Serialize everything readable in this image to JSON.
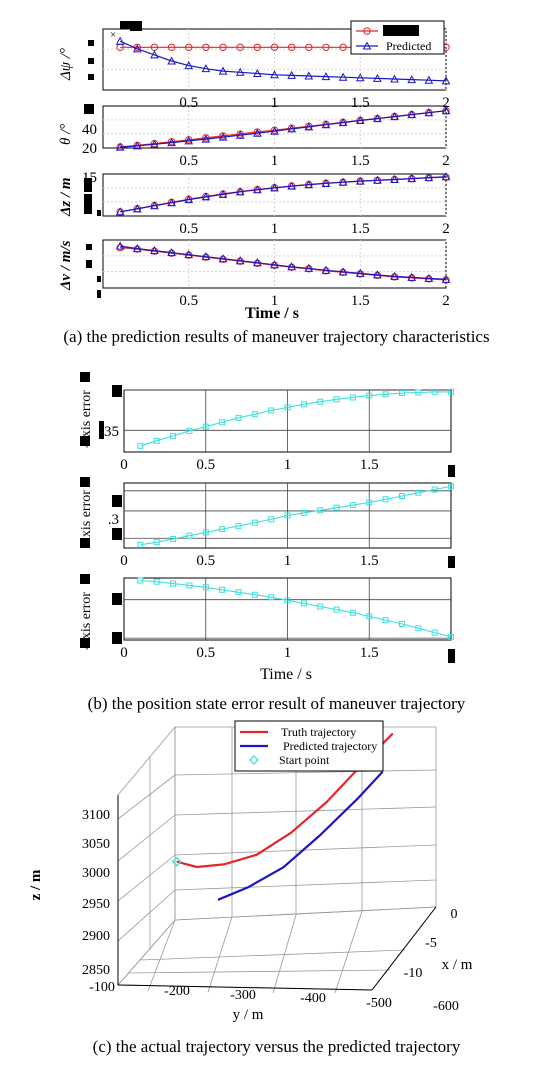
{
  "captions": {
    "a": "(a) the prediction results of maneuver trajectory characteristics",
    "b": "(b) the position state error result of maneuver trajectory",
    "c": "(c) the actual trajectory versus the predicted trajectory"
  },
  "colors": {
    "truth": "#e3262a",
    "predicted": "#1a16c8",
    "error": "#3de0dc",
    "grid": "#d2d2d2",
    "grid_b": "#444444"
  },
  "panel_a": {
    "legend": [
      "",
      "Predicted"
    ],
    "xlabel": "Time / s",
    "xticks": [
      "0.5",
      "1",
      "1.5",
      "2"
    ],
    "subplots": [
      {
        "ylabel": "Δψ /°",
        "yticks": []
      },
      {
        "ylabel": "θ /°",
        "yticks": [
          "40",
          "20"
        ]
      },
      {
        "ylabel": "Δz / m",
        "yticks": [
          "15"
        ]
      },
      {
        "ylabel": "Δv / m/s",
        "yticks": []
      }
    ]
  },
  "panel_b": {
    "xlabel": "Time / s",
    "xticks": [
      "0",
      "0.5",
      "1",
      "1.5"
    ],
    "subplots": [
      {
        "ylabel": "-axis error",
        "yticks": [
          ".35"
        ]
      },
      {
        "ylabel": "-axis error",
        "yticks": [
          ".3"
        ]
      },
      {
        "ylabel": "-axis error",
        "yticks": []
      }
    ]
  },
  "panel_c": {
    "legend": [
      "Truth trajectory",
      "Predicted trajectory",
      "Start point"
    ],
    "zlabel": "z / m",
    "ylabel": "y / m",
    "xlabel": "x / m",
    "zticks": [
      "3100",
      "3050",
      "3000",
      "2950",
      "2900",
      "2850"
    ],
    "yticks": [
      "-100",
      "-200",
      "-300",
      "-400",
      "-500",
      "-600"
    ],
    "xticks": [
      "0",
      "-5",
      "-10"
    ]
  },
  "chart_data": [
    {
      "type": "line",
      "title": "",
      "xlabel": "Time / s",
      "ylabel": "Δψ /°",
      "xlim": [
        0,
        2
      ],
      "x": [
        0.1,
        0.2,
        0.3,
        0.4,
        0.5,
        0.6,
        0.7,
        0.8,
        0.9,
        1.0,
        1.1,
        1.2,
        1.3,
        1.4,
        1.5,
        1.6,
        1.7,
        1.8,
        1.9,
        2.0
      ],
      "series": [
        {
          "name": "",
          "values": [
            0,
            0,
            0,
            0,
            0,
            0,
            0,
            0,
            0,
            0,
            0,
            0,
            0,
            0,
            0,
            0,
            0,
            0,
            0,
            0
          ]
        },
        {
          "name": "Predicted",
          "values": [
            0.2,
            -0.05,
            -0.25,
            -0.45,
            -0.6,
            -0.7,
            -0.78,
            -0.82,
            -0.86,
            -0.9,
            -0.92,
            -0.94,
            -0.96,
            -0.98,
            -1.0,
            -1.02,
            -1.04,
            -1.06,
            -1.08,
            -1.1
          ]
        }
      ]
    },
    {
      "type": "line",
      "title": "",
      "xlabel": "Time / s",
      "ylabel": "θ /°",
      "xlim": [
        0,
        2
      ],
      "ylim": [
        20,
        60
      ],
      "x": [
        0.1,
        0.2,
        0.3,
        0.4,
        0.5,
        0.6,
        0.7,
        0.8,
        0.9,
        1.0,
        1.1,
        1.2,
        1.3,
        1.4,
        1.5,
        1.6,
        1.7,
        1.8,
        1.9,
        2.0
      ],
      "series": [
        {
          "name": "",
          "values": [
            21,
            22.5,
            24.2,
            26,
            27.8,
            29.6,
            31.5,
            33.3,
            35.2,
            37,
            38.9,
            40.7,
            42.6,
            44.4,
            46.3,
            48.1,
            50,
            51.8,
            53.7,
            55.5
          ]
        },
        {
          "name": "Predicted",
          "values": [
            20.8,
            22,
            23.5,
            25.1,
            26.8,
            28.5,
            30.3,
            32.2,
            34.1,
            36,
            38.2,
            40.1,
            42.2,
            44.2,
            46.2,
            48,
            49.9,
            51.8,
            53.6,
            55.5
          ]
        }
      ]
    },
    {
      "type": "line",
      "title": "",
      "xlabel": "Time / s",
      "ylabel": "Δz / m",
      "xlim": [
        0,
        2
      ],
      "x": [
        0.1,
        0.2,
        0.3,
        0.4,
        0.5,
        0.6,
        0.7,
        0.8,
        0.9,
        1.0,
        1.1,
        1.2,
        1.3,
        1.4,
        1.5,
        1.6,
        1.7,
        1.8,
        1.9,
        2.0
      ],
      "series": [
        {
          "name": "",
          "values": [
            1,
            2.5,
            4,
            5.5,
            7,
            8.3,
            9.5,
            10.6,
            11.6,
            12.5,
            13.3,
            14,
            14.6,
            15.1,
            15.6,
            16,
            16.4,
            16.8,
            17.2,
            17.5
          ]
        },
        {
          "name": "Predicted",
          "values": [
            1,
            2.4,
            3.9,
            5.3,
            6.8,
            8.1,
            9.3,
            10.5,
            11.5,
            12.4,
            13.2,
            13.9,
            14.5,
            15.1,
            15.6,
            16,
            16.4,
            16.8,
            17.3,
            17.7
          ]
        }
      ]
    },
    {
      "type": "line",
      "title": "",
      "xlabel": "Time / s",
      "ylabel": "Δv / m/s",
      "xlim": [
        0,
        2
      ],
      "x": [
        0.1,
        0.2,
        0.3,
        0.4,
        0.5,
        0.6,
        0.7,
        0.8,
        0.9,
        1.0,
        1.1,
        1.2,
        1.3,
        1.4,
        1.5,
        1.6,
        1.7,
        1.8,
        1.9,
        2.0
      ],
      "series": [
        {
          "name": "",
          "values": [
            10,
            9.7,
            9.3,
            8.9,
            8.5,
            8.1,
            7.7,
            7.3,
            6.9,
            6.5,
            6.1,
            5.8,
            5.4,
            5.1,
            4.8,
            4.5,
            4.2,
            4.0,
            3.8,
            3.6
          ]
        },
        {
          "name": "Predicted",
          "values": [
            10.3,
            9.8,
            9.4,
            9,
            8.6,
            8.2,
            7.8,
            7.4,
            7,
            6.6,
            6.2,
            5.9,
            5.5,
            5.2,
            4.9,
            4.6,
            4.3,
            4.1,
            3.9,
            3.7
          ]
        }
      ]
    },
    {
      "type": "line",
      "title": "",
      "xlabel": "Time / s",
      "ylabel": "-axis error",
      "xlim": [
        0,
        2
      ],
      "x": [
        0.1,
        0.2,
        0.3,
        0.4,
        0.5,
        0.6,
        0.7,
        0.8,
        0.9,
        1.0,
        1.1,
        1.2,
        1.3,
        1.4,
        1.5,
        1.6,
        1.7,
        1.8,
        1.9,
        2.0
      ],
      "series": [
        {
          "name": "",
          "values": [
            0.1,
            0.18,
            0.26,
            0.34,
            0.41,
            0.48,
            0.55,
            0.61,
            0.67,
            0.72,
            0.77,
            0.81,
            0.85,
            0.88,
            0.91,
            0.93,
            0.95,
            0.96,
            0.97,
            0.97
          ]
        }
      ]
    },
    {
      "type": "line",
      "title": "",
      "xlabel": "Time / s",
      "ylabel": "-axis error",
      "xlim": [
        0,
        2
      ],
      "x": [
        0.1,
        0.2,
        0.3,
        0.4,
        0.5,
        0.6,
        0.7,
        0.8,
        0.9,
        1.0,
        1.1,
        1.2,
        1.3,
        1.4,
        1.5,
        1.6,
        1.7,
        1.8,
        1.9,
        2.0
      ],
      "series": [
        {
          "name": "",
          "values": [
            0.05,
            0.09,
            0.14,
            0.19,
            0.24,
            0.29,
            0.34,
            0.39,
            0.44,
            0.5,
            0.54,
            0.58,
            0.62,
            0.66,
            0.7,
            0.75,
            0.8,
            0.85,
            0.9,
            0.95
          ]
        }
      ]
    },
    {
      "type": "line",
      "title": "",
      "xlabel": "Time / s",
      "ylabel": "-axis error",
      "xlim": [
        0,
        2
      ],
      "x": [
        0.1,
        0.2,
        0.3,
        0.4,
        0.5,
        0.6,
        0.7,
        0.8,
        0.9,
        1.0,
        1.1,
        1.2,
        1.3,
        1.4,
        1.5,
        1.6,
        1.7,
        1.8,
        1.9,
        2.0
      ],
      "series": [
        {
          "name": "",
          "values": [
            0.96,
            0.94,
            0.91,
            0.88,
            0.85,
            0.81,
            0.77,
            0.73,
            0.69,
            0.64,
            0.59,
            0.54,
            0.49,
            0.44,
            0.38,
            0.32,
            0.26,
            0.19,
            0.12,
            0.05
          ]
        }
      ]
    },
    {
      "type": "line",
      "title": "",
      "xlabel": "x / m",
      "ylabel": "y / m",
      "zlabel": "z / m",
      "zlim": [
        2850,
        3100
      ],
      "ylim": [
        -600,
        -100
      ],
      "xlim": [
        -10,
        0
      ],
      "series": [
        {
          "name": "Truth trajectory",
          "x": [
            -4,
            -4,
            -3.8,
            -3.4,
            -2.8,
            -2,
            -1.2,
            -0.4
          ],
          "y": [
            -140,
            -180,
            -230,
            -290,
            -350,
            -410,
            -470,
            -520
          ],
          "z": [
            2955,
            2948,
            2950,
            2960,
            2985,
            3020,
            3065,
            3100
          ]
        },
        {
          "name": "Predicted trajectory",
          "x": [
            -5.5,
            -4.8,
            -4,
            -3,
            -2,
            -1.2
          ],
          "y": [
            -240,
            -290,
            -350,
            -410,
            -470,
            -510
          ],
          "z": [
            2920,
            2930,
            2950,
            2985,
            3025,
            3055
          ]
        },
        {
          "name": "Start point",
          "x": [
            -4
          ],
          "y": [
            -140
          ],
          "z": [
            2955
          ]
        }
      ]
    }
  ]
}
